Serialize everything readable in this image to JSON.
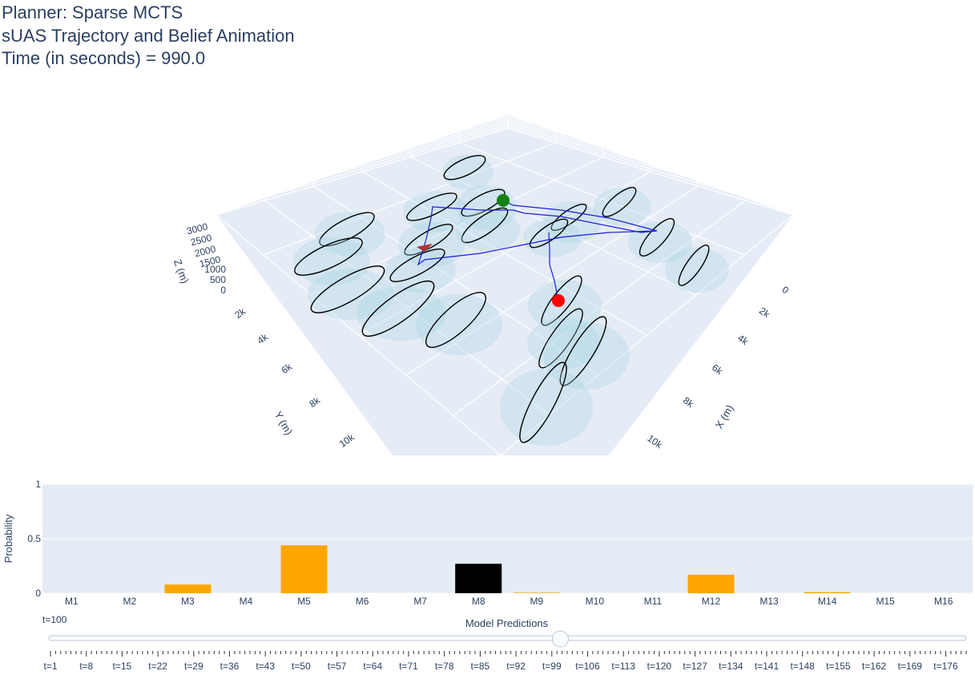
{
  "title": {
    "line1": "Planner: Sparse MCTS",
    "line2": "sUAS Trajectory and Belief Animation",
    "line3": "Time (in seconds) = 990.0"
  },
  "colors": {
    "plot_bg": "#e5ecf6",
    "grid": "#ffffff",
    "text": "#2a3f5f",
    "trajectory": "#1f1fd6",
    "start_marker": "#148214",
    "current_marker": "#ff0000",
    "ellipse_fill": "#add8e6",
    "bar_default": "#ffa500",
    "bar_highlight": "#000000"
  },
  "scene3d": {
    "x_axis": {
      "title": "X (m)",
      "ticks": [
        "0",
        "2k",
        "4k",
        "6k",
        "8k",
        "10k"
      ]
    },
    "y_axis": {
      "title": "Y (m)",
      "ticks": [
        "2k",
        "4k",
        "6k",
        "8k",
        "10k"
      ]
    },
    "z_axis": {
      "title": "Z (m)",
      "ticks": [
        "0",
        "500",
        "1000",
        "1500",
        "2000",
        "2500",
        "3000"
      ]
    },
    "markers": {
      "start": {
        "color": "green",
        "symbol": "circle"
      },
      "current": {
        "color": "red",
        "symbol": "circle"
      },
      "aircraft": {
        "color": "#b03030",
        "symbol": "arrow"
      }
    },
    "belief_region_count": 23
  },
  "chart_data": {
    "type": "bar",
    "categories": [
      "M1",
      "M2",
      "M3",
      "M4",
      "M5",
      "M6",
      "M7",
      "M8",
      "M9",
      "M10",
      "M11",
      "M12",
      "M13",
      "M14",
      "M15",
      "M16"
    ],
    "values": [
      0.0,
      0.0,
      0.08,
      0.0,
      0.44,
      0.0,
      0.0,
      0.27,
      0.005,
      0.0,
      0.0,
      0.17,
      0.0,
      0.01,
      0.0,
      0.0
    ],
    "highlight_index": 7,
    "ylabel": "Probability",
    "ylim": [
      0,
      1
    ],
    "yticks": [
      "0",
      "0.5",
      "1"
    ],
    "grid": true
  },
  "slider": {
    "current_label": "t=100",
    "title": "Model Predictions",
    "value_fraction": 0.5576,
    "tick_labels": [
      "t=1",
      "t=8",
      "t=15",
      "t=22",
      "t=29",
      "t=36",
      "t=43",
      "t=50",
      "t=57",
      "t=64",
      "t=71",
      "t=78",
      "t=85",
      "t=92",
      "t=99",
      "t=106",
      "t=113",
      "t=120",
      "t=127",
      "t=134",
      "t=141",
      "t=148",
      "t=155",
      "t=162",
      "t=169",
      "t=176"
    ]
  }
}
